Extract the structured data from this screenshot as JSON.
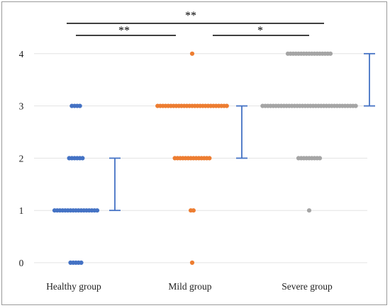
{
  "chart_data": {
    "type": "scatter",
    "title": "",
    "xlabel": "",
    "ylabel": "",
    "ylim": [
      0,
      4
    ],
    "yticks": [
      "0",
      "1",
      "2",
      "3",
      "4"
    ],
    "grid": true,
    "categories": [
      "Healthy group",
      "Mild group",
      "Severe group"
    ],
    "series": [
      {
        "category": "Healthy group",
        "color": "#4472C4",
        "points": [
          {
            "y": 0,
            "count": 5
          },
          {
            "y": 1,
            "count": 17
          },
          {
            "y": 2,
            "count": 6
          },
          {
            "y": 3,
            "count": 4
          }
        ],
        "range": {
          "min": 1,
          "max": 2
        }
      },
      {
        "category": "Mild group",
        "color": "#ED7D31",
        "points": [
          {
            "y": 0,
            "count": 1
          },
          {
            "y": 1,
            "count": 2
          },
          {
            "y": 2,
            "count": 14
          },
          {
            "y": 3,
            "count": 27
          },
          {
            "y": 4,
            "count": 1
          }
        ],
        "range": {
          "min": 2,
          "max": 3
        }
      },
      {
        "category": "Severe group",
        "color": "#A5A5A5",
        "points": [
          {
            "y": 1,
            "count": 1
          },
          {
            "y": 2,
            "count": 9
          },
          {
            "y": 3,
            "count": 36
          },
          {
            "y": 4,
            "count": 17
          }
        ],
        "range": {
          "min": 3,
          "max": 4
        }
      }
    ],
    "range_color": "#4472C4",
    "significance": [
      {
        "groups": [
          "Healthy group",
          "Severe group"
        ],
        "label": "**"
      },
      {
        "groups": [
          "Healthy group",
          "Mild group"
        ],
        "label": "**"
      },
      {
        "groups": [
          "Mild group",
          "Severe group"
        ],
        "label": "*"
      }
    ]
  }
}
